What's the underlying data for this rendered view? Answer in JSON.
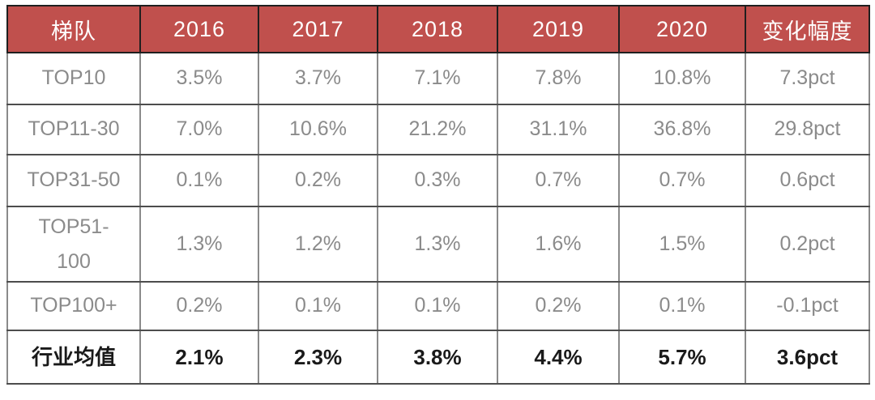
{
  "chart_data": {
    "type": "table",
    "columns": [
      "梯队",
      "2016",
      "2017",
      "2018",
      "2019",
      "2020",
      "变化幅度"
    ],
    "rows": [
      {
        "label": "TOP10",
        "values": [
          "3.5%",
          "3.7%",
          "7.1%",
          "7.8%",
          "10.8%",
          "7.3pct"
        ]
      },
      {
        "label": "TOP11-30",
        "values": [
          "7.0%",
          "10.6%",
          "21.2%",
          "31.1%",
          "36.8%",
          "29.8pct"
        ]
      },
      {
        "label": "TOP31-50",
        "values": [
          "0.1%",
          "0.2%",
          "0.3%",
          "0.7%",
          "0.7%",
          "0.6pct"
        ]
      },
      {
        "label": "TOP51-100",
        "values": [
          "1.3%",
          "1.2%",
          "1.3%",
          "1.6%",
          "1.5%",
          "0.2pct"
        ]
      },
      {
        "label": "TOP100+",
        "values": [
          "0.2%",
          "0.1%",
          "0.1%",
          "0.2%",
          "0.1%",
          "-0.1pct"
        ]
      },
      {
        "label": "行业均值",
        "values": [
          "2.1%",
          "2.3%",
          "3.8%",
          "4.4%",
          "5.7%",
          "3.6pct"
        ],
        "emphasis": true
      }
    ]
  },
  "colors": {
    "header_bg": "#c0504d",
    "header_text": "#ffffff",
    "header_sep": "#1f1f1f",
    "body_text": "#8b8b8b",
    "emphasis_text": "#1a1a1a",
    "grid_v": "#8a8a8a",
    "grid_h": "#4d4d4d",
    "frame": "#2b2b2b"
  }
}
